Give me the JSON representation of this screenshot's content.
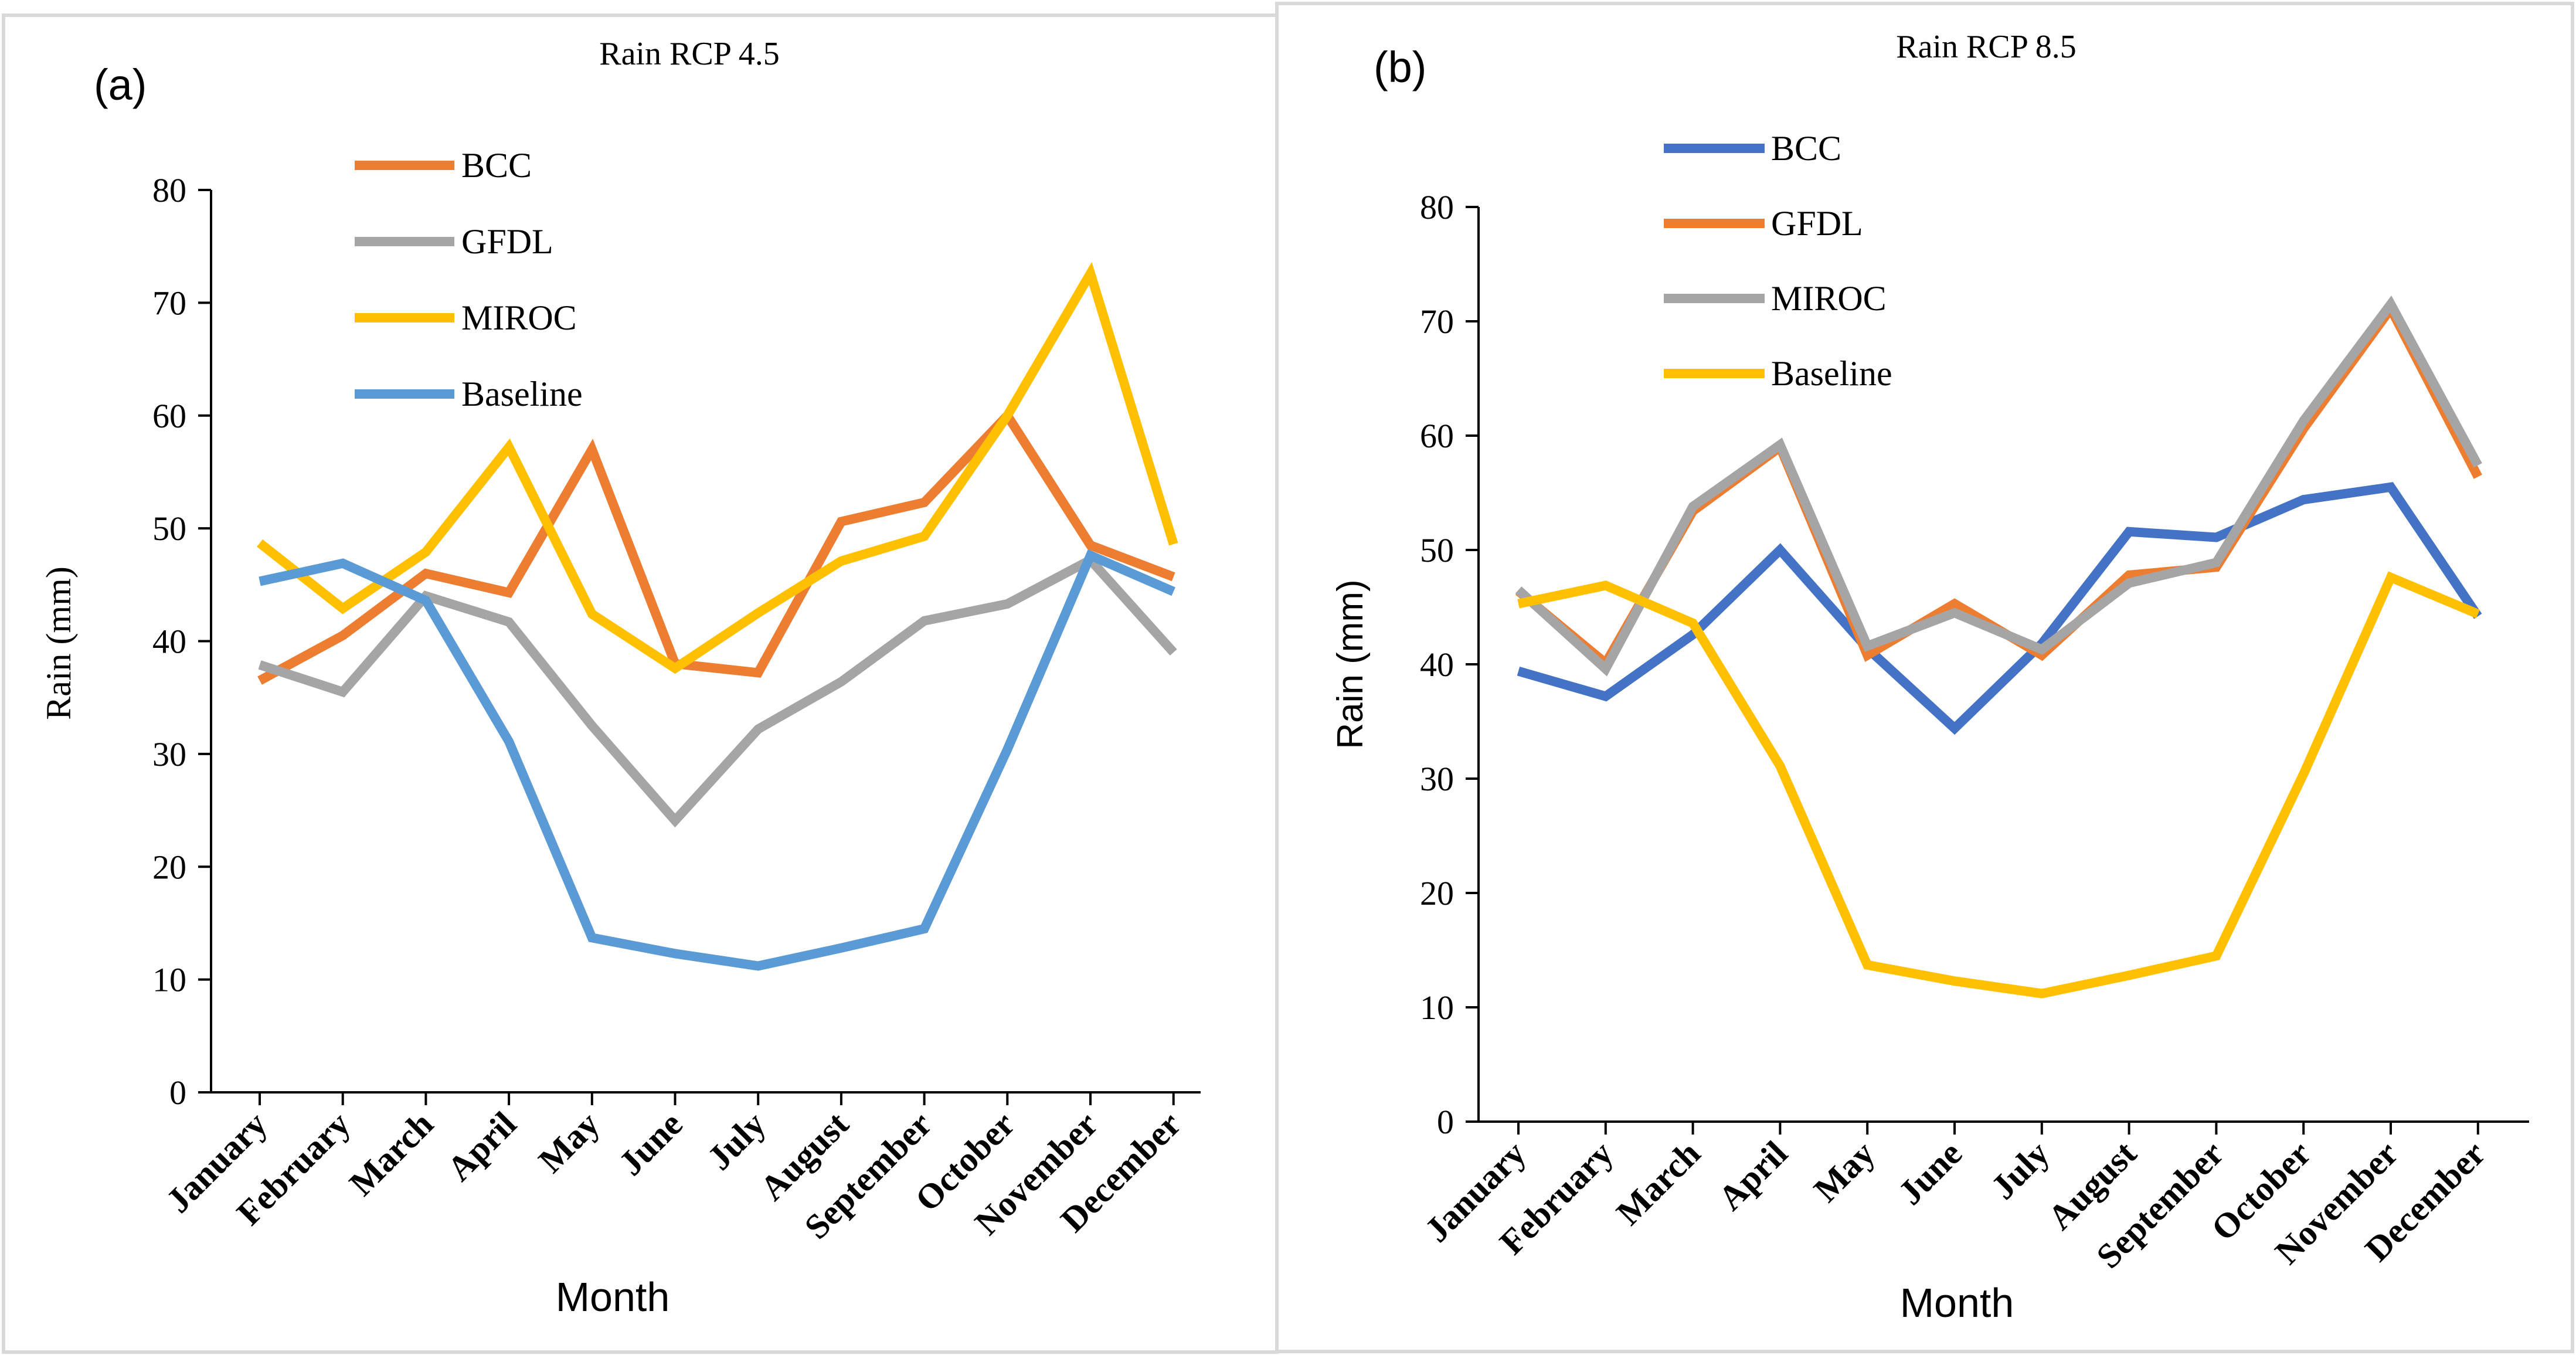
{
  "figure": {
    "panels": [
      "(a)",
      "(b)"
    ]
  },
  "chart_data": [
    {
      "type": "line",
      "panel_label": "(a)",
      "title": "Rain RCP 4.5",
      "xlabel": "Month",
      "ylabel": "Rain (mm)",
      "ylim": [
        0,
        80
      ],
      "yticks": [
        "0",
        "10",
        "20",
        "30",
        "40",
        "50",
        "60",
        "70",
        "80"
      ],
      "categories": [
        "January",
        "February",
        "March",
        "April",
        "May",
        "June",
        "July",
        "August",
        "September",
        "October",
        "November",
        "December"
      ],
      "legend_position": "top-left",
      "series": [
        {
          "name": "BCC",
          "color": "#ED7D31",
          "values": [
            36.5,
            40.5,
            46,
            44.3,
            57,
            38,
            37.2,
            50.6,
            52.3,
            60,
            48.5,
            45.7
          ]
        },
        {
          "name": "GFDL",
          "color": "#A5A5A5",
          "values": [
            37.9,
            35.5,
            44,
            41.7,
            32.5,
            24.1,
            32.2,
            36.4,
            41.8,
            43.3,
            47.2,
            39
          ]
        },
        {
          "name": "MIROC",
          "color": "#FFC000",
          "values": [
            48.7,
            42.9,
            47.9,
            57.2,
            42.4,
            37.6,
            42.5,
            47.1,
            49.3,
            60,
            72.6,
            48.6
          ]
        },
        {
          "name": "Baseline",
          "color": "#5B9BD5",
          "values": [
            45.3,
            46.9,
            43.6,
            31.1,
            13.7,
            12.3,
            11.2,
            12.8,
            14.5,
            30.4,
            47.6,
            44.4
          ]
        }
      ]
    },
    {
      "type": "line",
      "panel_label": "(b)",
      "title": "Rain RCP 8.5",
      "xlabel": "Month",
      "ylabel": "Rain (mm)",
      "ylim": [
        0,
        80
      ],
      "yticks": [
        "0",
        "10",
        "20",
        "30",
        "40",
        "50",
        "60",
        "70",
        "80"
      ],
      "categories": [
        "January",
        "February",
        "March",
        "April",
        "May",
        "June",
        "July",
        "August",
        "September",
        "October",
        "November",
        "December"
      ],
      "legend_position": "top-left",
      "series": [
        {
          "name": "BCC",
          "color": "#4472C4",
          "values": [
            39.4,
            37.2,
            42.6,
            50,
            41.4,
            34.4,
            41.8,
            51.6,
            51.1,
            54.4,
            55.5,
            44.2
          ]
        },
        {
          "name": "GFDL",
          "color": "#ED7D31",
          "values": [
            46.4,
            40.1,
            53.4,
            59,
            40.8,
            45.3,
            40.8,
            47.8,
            48.5,
            60.6,
            71.1,
            56.4
          ]
        },
        {
          "name": "MIROC",
          "color": "#A5A5A5",
          "values": [
            46.5,
            39.6,
            53.8,
            59.2,
            41.6,
            44.5,
            41.3,
            47.1,
            48.9,
            61.3,
            71.5,
            57.4
          ]
        },
        {
          "name": "Baseline",
          "color": "#FFC000",
          "values": [
            45.3,
            46.9,
            43.6,
            31.1,
            13.7,
            12.3,
            11.2,
            12.8,
            14.5,
            30.4,
            47.6,
            44.4
          ]
        }
      ]
    }
  ]
}
